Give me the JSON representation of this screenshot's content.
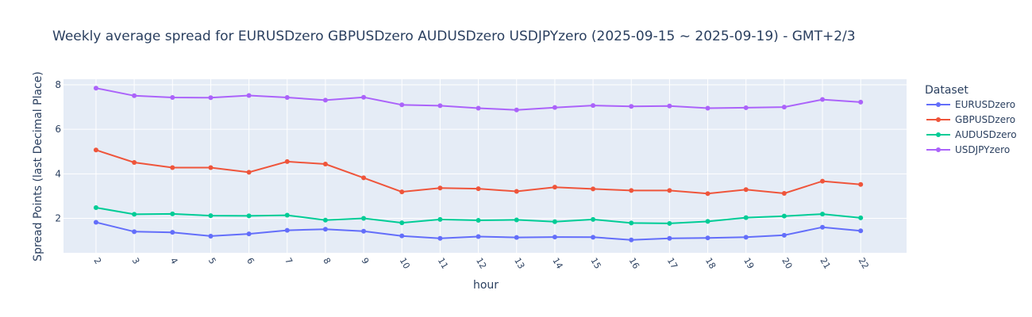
{
  "chart_data": {
    "type": "line",
    "title": "Weekly average spread for  EURUSDzero GBPUSDzero AUDUSDzero USDJPYzero (2025-09-15 ~ 2025-09-19) - GMT+2/3",
    "xlabel": "hour",
    "ylabel": "Spread Points (last Decimal Place)",
    "x": [
      2,
      3,
      4,
      5,
      6,
      7,
      8,
      9,
      10,
      11,
      12,
      13,
      14,
      15,
      16,
      17,
      18,
      19,
      20,
      21,
      22
    ],
    "yticks": [
      2,
      4,
      6,
      8
    ],
    "ylim": [
      0.45,
      8.25
    ],
    "grid": true,
    "legend": {
      "title": "Dataset",
      "placement": "right"
    },
    "series": [
      {
        "name": "EURUSDzero",
        "color": "#636efa",
        "values": [
          1.82,
          1.4,
          1.37,
          1.2,
          1.3,
          1.46,
          1.51,
          1.42,
          1.21,
          1.1,
          1.18,
          1.14,
          1.16,
          1.15,
          1.03,
          1.1,
          1.12,
          1.15,
          1.24,
          1.6,
          1.44
        ]
      },
      {
        "name": "GBPUSDzero",
        "color": "#ef553b",
        "values": [
          5.07,
          4.51,
          4.28,
          4.28,
          4.07,
          4.55,
          4.44,
          3.82,
          3.19,
          3.36,
          3.33,
          3.21,
          3.4,
          3.32,
          3.25,
          3.25,
          3.11,
          3.29,
          3.12,
          3.67,
          3.52
        ]
      },
      {
        "name": "AUDUSDzero",
        "color": "#00cc96",
        "values": [
          2.48,
          2.18,
          2.2,
          2.12,
          2.11,
          2.14,
          1.92,
          2.0,
          1.8,
          1.95,
          1.91,
          1.93,
          1.85,
          1.95,
          1.79,
          1.77,
          1.86,
          2.03,
          2.1,
          2.19,
          2.02
        ]
      },
      {
        "name": "USDJPYzero",
        "color": "#ab63fa",
        "values": [
          7.85,
          7.51,
          7.43,
          7.42,
          7.52,
          7.43,
          7.31,
          7.44,
          7.1,
          7.06,
          6.95,
          6.87,
          6.98,
          7.07,
          7.03,
          7.05,
          6.95,
          6.97,
          7.0,
          7.34,
          7.22
        ]
      }
    ]
  }
}
